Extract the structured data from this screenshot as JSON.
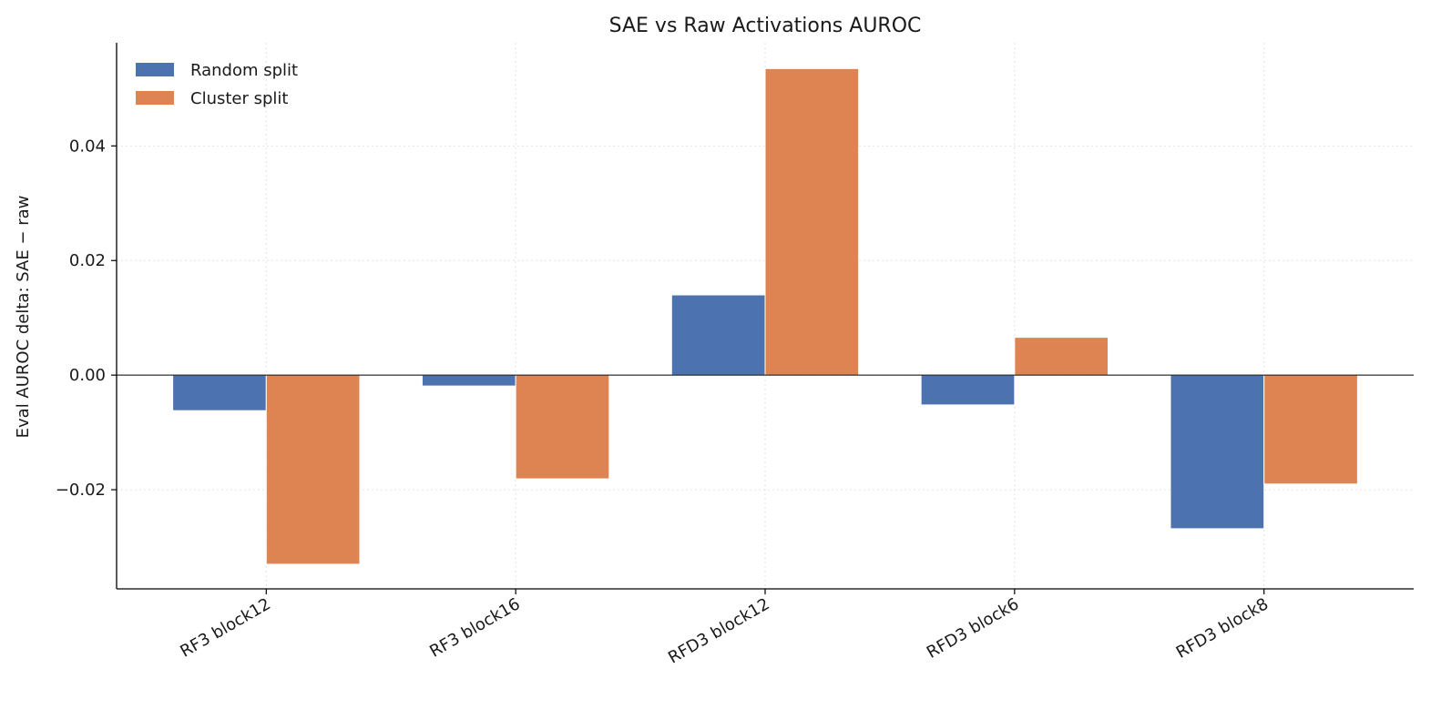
{
  "chart_data": {
    "type": "bar",
    "title": "SAE vs Raw Activations AUROC",
    "xlabel": "",
    "ylabel": "Eval AUROC delta:  SAE − raw",
    "categories": [
      "RF3 block12",
      "RF3 block16",
      "RFD3 block12",
      "RFD3 block6",
      "RFD3 block8"
    ],
    "series": [
      {
        "name": "Random split",
        "color": "#4c72b0",
        "values": [
          -0.0062,
          -0.0019,
          0.014,
          -0.0052,
          -0.0268
        ]
      },
      {
        "name": "Cluster split",
        "color": "#dd8452",
        "values": [
          -0.033,
          -0.0181,
          0.0535,
          0.0066,
          -0.019
        ]
      }
    ],
    "ylim": [
      -0.0373,
      0.058
    ],
    "yticks": [
      -0.02,
      0.0,
      0.02,
      0.04
    ],
    "ytick_labels": [
      "−0.02",
      "0.00",
      "0.02",
      "0.04"
    ],
    "grid": true,
    "legend_position": "top-left"
  }
}
